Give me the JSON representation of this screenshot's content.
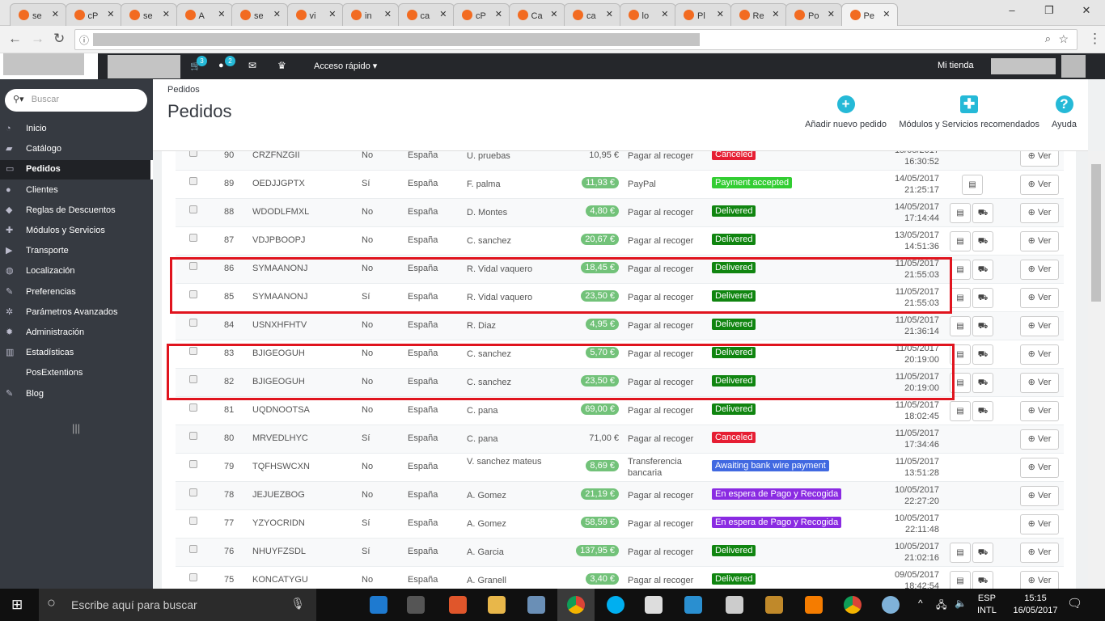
{
  "browser": {
    "tabs": [
      "se",
      "cP",
      "se",
      "A",
      "se",
      "vi",
      "in",
      "ca",
      "cP",
      "Ca",
      "ca",
      "lo",
      "Pl",
      "Re",
      "Po",
      "Pe"
    ]
  },
  "admin": {
    "cart_count": "3",
    "customers_count": "2",
    "quick_access": "Acceso rápido ▾",
    "shop": "Mi tienda"
  },
  "sidebar": {
    "search_placeholder": "Buscar",
    "items": [
      {
        "label": "Inicio",
        "icon": "speedometer-icon",
        "glyph": "◔"
      },
      {
        "label": "Catálogo",
        "icon": "book-icon",
        "glyph": "▰"
      },
      {
        "label": "Pedidos",
        "icon": "credit-card-icon",
        "glyph": "▭",
        "active": true
      },
      {
        "label": "Clientes",
        "icon": "users-icon",
        "glyph": "●"
      },
      {
        "label": "Reglas de Descuentos",
        "icon": "tag-icon",
        "glyph": "◆"
      },
      {
        "label": "Módulos y Servicios",
        "icon": "puzzle-icon",
        "glyph": "✚"
      },
      {
        "label": "Transporte",
        "icon": "truck-icon",
        "glyph": "▶"
      },
      {
        "label": "Localización",
        "icon": "globe-icon",
        "glyph": "◍"
      },
      {
        "label": "Preferencias",
        "icon": "wrench-icon",
        "glyph": "✎"
      },
      {
        "label": "Parámetros Avanzados",
        "icon": "cogs-icon",
        "glyph": "✲"
      },
      {
        "label": "Administración",
        "icon": "cog-icon",
        "glyph": "✹"
      },
      {
        "label": "Estadísticas",
        "icon": "bar-chart-icon",
        "glyph": "▥"
      },
      {
        "label": "PosExtentions",
        "icon": "",
        "glyph": ""
      },
      {
        "label": "Blog",
        "icon": "pencil-icon",
        "glyph": "✎"
      }
    ]
  },
  "header": {
    "breadcrumb": "Pedidos",
    "title": "Pedidos",
    "actions": [
      {
        "label": "Añadir nuevo pedido",
        "icon": "plus-circle-icon",
        "glyph": "+"
      },
      {
        "label": "Módulos y Servicios recomendados",
        "icon": "puzzle-icon",
        "glyph": "✚"
      },
      {
        "label": "Ayuda",
        "icon": "help-icon",
        "glyph": "?"
      }
    ]
  },
  "view_label": "Ver",
  "status_colors": {
    "Canceled": "#e61e33",
    "Payment accepted": "#32cd32",
    "Delivered": "#108510",
    "Awaiting bank wire payment": "#4169e1",
    "En espera de Pago y Recogida": "#8a2be2"
  },
  "orders": [
    {
      "id": "90",
      "ref": "CRZFNZGII",
      "new": "No",
      "country": "España",
      "customer": "U. pruebas",
      "total": "10,95 €",
      "pill": false,
      "payment": "Pagar al recoger",
      "status": "Canceled",
      "date": "15/05/2017",
      "time": "16:30:52",
      "inv": false,
      "del": false
    },
    {
      "id": "89",
      "ref": "OEDJJGPTX",
      "new": "Sí",
      "country": "España",
      "customer": "F. palma",
      "total": "11,93 €",
      "pill": true,
      "payment": "PayPal",
      "status": "Payment accepted",
      "date": "14/05/2017",
      "time": "21:25:17",
      "inv": true,
      "del": false
    },
    {
      "id": "88",
      "ref": "WDODLFMXL",
      "new": "No",
      "country": "España",
      "customer": "D. Montes",
      "total": "4,80 €",
      "pill": true,
      "payment": "Pagar al recoger",
      "status": "Delivered",
      "date": "14/05/2017",
      "time": "17:14:44",
      "inv": true,
      "del": true
    },
    {
      "id": "87",
      "ref": "VDJPBOOPJ",
      "new": "No",
      "country": "España",
      "customer": "C. sanchez",
      "total": "20,67 €",
      "pill": true,
      "payment": "Pagar al recoger",
      "status": "Delivered",
      "date": "13/05/2017",
      "time": "14:51:36",
      "inv": true,
      "del": true
    },
    {
      "id": "86",
      "ref": "SYMAANONJ",
      "new": "No",
      "country": "España",
      "customer": "R. Vidal vaquero",
      "total": "18,45 €",
      "pill": true,
      "payment": "Pagar al recoger",
      "status": "Delivered",
      "date": "11/05/2017",
      "time": "21:55:03",
      "inv": true,
      "del": true
    },
    {
      "id": "85",
      "ref": "SYMAANONJ",
      "new": "Sí",
      "country": "España",
      "customer": "R. Vidal vaquero",
      "total": "23,50 €",
      "pill": true,
      "payment": "Pagar al recoger",
      "status": "Delivered",
      "date": "11/05/2017",
      "time": "21:55:03",
      "inv": true,
      "del": true
    },
    {
      "id": "84",
      "ref": "USNXHFHTV",
      "new": "No",
      "country": "España",
      "customer": "R. Diaz",
      "total": "4,95 €",
      "pill": true,
      "payment": "Pagar al recoger",
      "status": "Delivered",
      "date": "11/05/2017",
      "time": "21:36:14",
      "inv": true,
      "del": true
    },
    {
      "id": "83",
      "ref": "BJIGEOGUH",
      "new": "No",
      "country": "España",
      "customer": "C. sanchez",
      "total": "5,70 €",
      "pill": true,
      "payment": "Pagar al recoger",
      "status": "Delivered",
      "date": "11/05/2017",
      "time": "20:19:00",
      "inv": true,
      "del": true
    },
    {
      "id": "82",
      "ref": "BJIGEOGUH",
      "new": "No",
      "country": "España",
      "customer": "C. sanchez",
      "total": "23,50 €",
      "pill": true,
      "payment": "Pagar al recoger",
      "status": "Delivered",
      "date": "11/05/2017",
      "time": "20:19:00",
      "inv": true,
      "del": true
    },
    {
      "id": "81",
      "ref": "UQDNOOTSA",
      "new": "No",
      "country": "España",
      "customer": "C. pana",
      "total": "69,00 €",
      "pill": true,
      "payment": "Pagar al recoger",
      "status": "Delivered",
      "date": "11/05/2017",
      "time": "18:02:45",
      "inv": true,
      "del": true
    },
    {
      "id": "80",
      "ref": "MRVEDLHYC",
      "new": "Sí",
      "country": "España",
      "customer": "C. pana",
      "total": "71,00 €",
      "pill": false,
      "payment": "Pagar al recoger",
      "status": "Canceled",
      "date": "11/05/2017",
      "time": "17:34:46",
      "inv": false,
      "del": false
    },
    {
      "id": "79",
      "ref": "TQFHSWCXN",
      "new": "No",
      "country": "España",
      "customer": "V. sanchez mateus",
      "total": "8,69 €",
      "pill": true,
      "payment": "Transferencia bancaria",
      "status": "Awaiting bank wire payment",
      "date": "11/05/2017",
      "time": "13:51:28",
      "inv": false,
      "del": false
    },
    {
      "id": "78",
      "ref": "JEJUEZBOG",
      "new": "No",
      "country": "España",
      "customer": "A. Gomez",
      "total": "21,19 €",
      "pill": true,
      "payment": "Pagar al recoger",
      "status": "En espera de Pago y Recogida",
      "date": "10/05/2017",
      "time": "22:27:20",
      "inv": false,
      "del": false
    },
    {
      "id": "77",
      "ref": "YZYOCRIDN",
      "new": "Sí",
      "country": "España",
      "customer": "A. Gomez",
      "total": "58,59 €",
      "pill": true,
      "payment": "Pagar al recoger",
      "status": "En espera de Pago y Recogida",
      "date": "10/05/2017",
      "time": "22:11:48",
      "inv": false,
      "del": false
    },
    {
      "id": "76",
      "ref": "NHUYFZSDL",
      "new": "Sí",
      "country": "España",
      "customer": "A. Garcia",
      "total": "137,95 €",
      "pill": true,
      "payment": "Pagar al recoger",
      "status": "Delivered",
      "date": "10/05/2017",
      "time": "21:02:16",
      "inv": true,
      "del": true
    },
    {
      "id": "75",
      "ref": "KONCATYGU",
      "new": "No",
      "country": "España",
      "customer": "A. Granell",
      "total": "3,40 €",
      "pill": true,
      "payment": "Pagar al recoger",
      "status": "Delivered",
      "date": "09/05/2017",
      "time": "18:42:54",
      "inv": true,
      "del": true
    }
  ],
  "taskbar": {
    "search_placeholder": "Escribe aquí para buscar",
    "lang1": "ESP",
    "lang2": "INTL",
    "time": "15:15",
    "date": "16/05/2017"
  }
}
